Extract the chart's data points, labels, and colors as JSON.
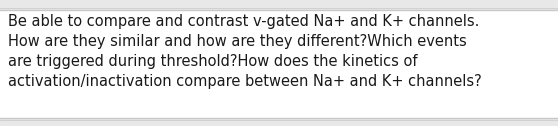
{
  "text": "Be able to compare and contrast v-gated Na+ and K+ channels.\nHow are they similar and how are they different?Which events\nare triggered during threshold?How does the kinetics of\nactivation/inactivation compare between Na+ and K+ channels?",
  "background_color": "#e8e8e8",
  "text_color": "#1a1a1a",
  "font_size": 10.5,
  "border_color": "#c8c8c8",
  "box_background": "#ffffff",
  "fig_width": 5.58,
  "fig_height": 1.26,
  "top_border_color": "#d0d0d0",
  "bottom_border_color": "#d0d0d0"
}
